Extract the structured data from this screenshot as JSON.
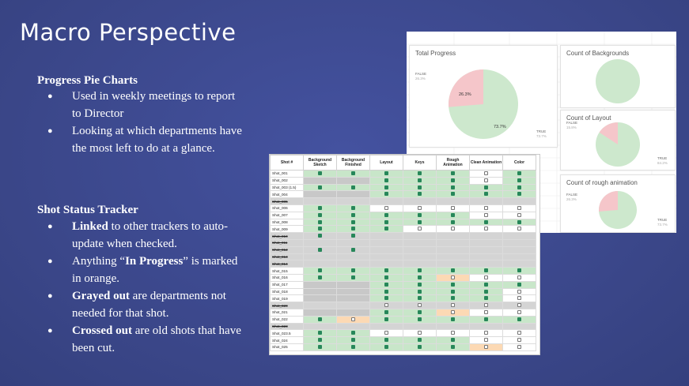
{
  "title": "Macro Perspective",
  "sections": [
    {
      "heading": "Progress Pie Charts",
      "bullets": [
        {
          "bold": "",
          "text": "Used in weekly meetings to report to Director"
        },
        {
          "bold": "",
          "text": "Looking at which departments have the most left to do at a glance."
        }
      ]
    },
    {
      "heading": "Shot Status Tracker",
      "bullets": [
        {
          "bold": "Linked",
          "text": " to other trackers to auto-update when checked."
        },
        {
          "bold": "",
          "pre": "Anything “",
          "bold2": "In Progress",
          "post": "” is marked in orange."
        },
        {
          "bold": "Grayed out",
          "text": " are departments not needed for that shot."
        },
        {
          "bold": "Crossed out",
          "text": " are old shots that have been cut."
        }
      ]
    }
  ],
  "pies": {
    "total": {
      "title": "Total Progress",
      "false_label": "FALSE",
      "false_pct": "26.3%",
      "true_label": "TRUE",
      "true_pct": "73.7%",
      "false_value": 26.3
    },
    "backgrounds": {
      "title": "Count of Backgrounds",
      "false_value": 0
    },
    "layout": {
      "title": "Count of Layout",
      "false_label": "FALSE",
      "false_pct": "15.8%",
      "true_label": "TRUE",
      "true_pct": "84.2%",
      "false_value": 15.8
    },
    "rough": {
      "title": "Count of rough animation",
      "false_label": "FALSE",
      "false_pct": "26.3%",
      "true_label": "TRUE",
      "true_pct": "73.7%",
      "false_value": 26.3
    }
  },
  "colors": {
    "pie_true": "#cde8cd",
    "pie_false": "#f5c6ca",
    "check": "#27875a",
    "in_progress": "#fcd9b4",
    "grayed": "#c8c8c8",
    "done": "#c8e6c9"
  },
  "tracker": {
    "headers": [
      "Shot #",
      "Background Sketch",
      "Background Finished",
      "Layout",
      "Keys",
      "Rough Animation",
      "Clean Animation",
      "Color"
    ],
    "rows": [
      {
        "name": "Shot_001",
        "cut": false,
        "cells": [
          "g1",
          "g1",
          "g1",
          "g1",
          "g1",
          "w0",
          "g1"
        ]
      },
      {
        "name": "Shot_002",
        "cut": false,
        "cells": [
          "x",
          "x",
          "g1",
          "g1",
          "g1",
          "w0",
          "g1"
        ]
      },
      {
        "name": "Shot_003 (1.5)",
        "cut": false,
        "cells": [
          "g1",
          "g1",
          "g1",
          "g1",
          "g1",
          "g1",
          "g1"
        ]
      },
      {
        "name": "Shot_004",
        "cut": false,
        "cells": [
          "x",
          "x",
          "g1",
          "g1",
          "g1",
          "g1",
          "g1"
        ]
      },
      {
        "name": "Shot_005",
        "cut": true,
        "cells": [
          "",
          "",
          "",
          "",
          "",
          "",
          ""
        ]
      },
      {
        "name": "Shot_006",
        "cut": false,
        "cells": [
          "g1",
          "g1",
          "w0",
          "w0",
          "w0",
          "w0",
          "w0"
        ]
      },
      {
        "name": "Shot_007",
        "cut": false,
        "cells": [
          "g1",
          "g1",
          "g1",
          "g1",
          "g1",
          "w0",
          "w0"
        ]
      },
      {
        "name": "Shot_008",
        "cut": false,
        "cells": [
          "g1",
          "g1",
          "g1",
          "g1",
          "g1",
          "g1",
          "g1"
        ]
      },
      {
        "name": "Shot_009",
        "cut": false,
        "cells": [
          "g1",
          "g1",
          "g1",
          "w0",
          "w0",
          "w0",
          "w0"
        ]
      },
      {
        "name": "Shot_010",
        "cut": true,
        "cells": [
          "g1",
          "g1",
          "",
          "",
          "",
          "",
          ""
        ]
      },
      {
        "name": "Shot_011",
        "cut": true,
        "cells": [
          "",
          "",
          "",
          "",
          "",
          "",
          ""
        ]
      },
      {
        "name": "Shot_012",
        "cut": true,
        "cells": [
          "g1",
          "g1",
          "",
          "",
          "",
          "",
          ""
        ]
      },
      {
        "name": "Shot_013",
        "cut": true,
        "cells": [
          "",
          "",
          "",
          "",
          "",
          "",
          ""
        ]
      },
      {
        "name": "Shot_014",
        "cut": true,
        "cells": [
          "",
          "",
          "",
          "",
          "",
          "",
          ""
        ]
      },
      {
        "name": "Shot_015",
        "cut": false,
        "cells": [
          "g1",
          "g1",
          "g1",
          "g1",
          "g1",
          "g1",
          "g1"
        ]
      },
      {
        "name": "Shot_016",
        "cut": false,
        "cells": [
          "g1",
          "g1",
          "g1",
          "g1",
          "o0",
          "w0",
          "w0"
        ]
      },
      {
        "name": "Shot_017",
        "cut": false,
        "cells": [
          "x",
          "x",
          "g1",
          "g1",
          "g1",
          "g1",
          "g1"
        ]
      },
      {
        "name": "Shot_018",
        "cut": false,
        "cells": [
          "x",
          "x",
          "g1",
          "g1",
          "g1",
          "g1",
          "w0"
        ]
      },
      {
        "name": "Shot_019",
        "cut": false,
        "cells": [
          "x",
          "x",
          "g1",
          "g1",
          "g1",
          "g1",
          "w0"
        ]
      },
      {
        "name": "Shot_020",
        "cut": true,
        "cells": [
          "",
          "",
          "w0",
          "w0",
          "w0",
          "w0",
          "w0"
        ]
      },
      {
        "name": "Shot_021",
        "cut": false,
        "cells": [
          "x",
          "x",
          "g1",
          "g1",
          "o0",
          "w0",
          "w0"
        ]
      },
      {
        "name": "Shot_022",
        "cut": false,
        "cells": [
          "g1",
          "o0",
          "g1",
          "g1",
          "g1",
          "g1",
          "g1"
        ]
      },
      {
        "name": "Shot_023",
        "cut": true,
        "cells": [
          "",
          "",
          "",
          "",
          "",
          "",
          ""
        ]
      },
      {
        "name": "Shot_023.5",
        "cut": false,
        "cells": [
          "g1",
          "g1",
          "w0",
          "w0",
          "w0",
          "w0",
          "w0"
        ]
      },
      {
        "name": "Shot_024",
        "cut": false,
        "cells": [
          "g1",
          "g1",
          "g1",
          "g1",
          "g1",
          "w0",
          "w0"
        ]
      },
      {
        "name": "Shot_025",
        "cut": false,
        "cells": [
          "g1",
          "g1",
          "g1",
          "g1",
          "g1",
          "o0",
          "w0"
        ]
      }
    ]
  }
}
